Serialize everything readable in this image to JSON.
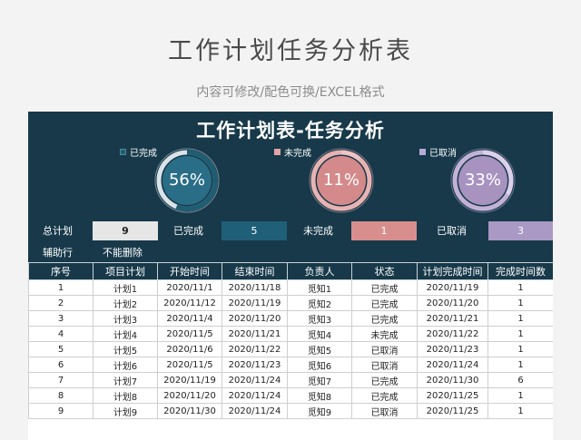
{
  "page": {
    "title": "工作计划任务分析表",
    "subtitle": "内容可修改/配色可换/EXCEL格式"
  },
  "dashboard": {
    "title": "工作计划表-任务分析",
    "rings": [
      {
        "legend": "已完成",
        "percent_label": "56%",
        "fraction": 0.56,
        "color": "#1e5e75",
        "fill": "#2a6d86",
        "track": "#d9e3e8"
      },
      {
        "legend": "未完成",
        "percent_label": "11%",
        "fraction": 0.11,
        "color": "#f0c4c4",
        "fill": "#d48a8a",
        "track": "#e8b3b3"
      },
      {
        "legend": "已取消",
        "percent_label": "33%",
        "fraction": 0.33,
        "color": "#ddd0ea",
        "fill": "#a792c0",
        "track": "#c2b2d6"
      }
    ],
    "summary": {
      "total_label": "总计划",
      "total_value": "9",
      "done_label": "已完成",
      "done_value": "5",
      "undone_label": "未完成",
      "undone_value": "1",
      "cancel_label": "已取消",
      "cancel_value": "3"
    },
    "aux": {
      "label": "辅助行",
      "note": "不能删除"
    },
    "colors": {
      "dark": "#17394a",
      "done_box": "#1f5f78",
      "undone_box": "#d98e8e",
      "cancel_box": "#a999c4",
      "total_box": "#e6e6e6"
    }
  },
  "table": {
    "headers": [
      "序号",
      "项目计划",
      "开始时间",
      "结束时间",
      "负责人",
      "状态",
      "计划完成时间",
      "完成时间数"
    ],
    "rows": [
      [
        "1",
        "计划1",
        "2020/11/1",
        "2020/11/18",
        "觅知1",
        "已完成",
        "2020/11/19",
        "1"
      ],
      [
        "2",
        "计划2",
        "2020/11/12",
        "2020/11/19",
        "觅知2",
        "已完成",
        "2020/11/20",
        "1"
      ],
      [
        "3",
        "计划3",
        "2020/11/4",
        "2020/11/20",
        "觅知3",
        "已完成",
        "2020/11/21",
        "1"
      ],
      [
        "4",
        "计划4",
        "2020/11/5",
        "2020/11/21",
        "觅知4",
        "未完成",
        "2020/11/22",
        "1"
      ],
      [
        "5",
        "计划5",
        "2020/11/6",
        "2020/11/22",
        "觅知5",
        "已取消",
        "2020/11/23",
        "1"
      ],
      [
        "6",
        "计划6",
        "2020/11/5",
        "2020/11/23",
        "觅知6",
        "已取消",
        "2020/11/24",
        "1"
      ],
      [
        "7",
        "计划7",
        "2020/11/19",
        "2020/11/24",
        "觅知7",
        "已完成",
        "2020/11/30",
        "6"
      ],
      [
        "8",
        "计划8",
        "2020/11/20",
        "2020/11/24",
        "觅知8",
        "已完成",
        "2020/11/25",
        "1"
      ],
      [
        "9",
        "计划9",
        "2020/11/30",
        "2020/11/24",
        "觅知9",
        "已取消",
        "2020/11/25",
        "1"
      ]
    ]
  }
}
